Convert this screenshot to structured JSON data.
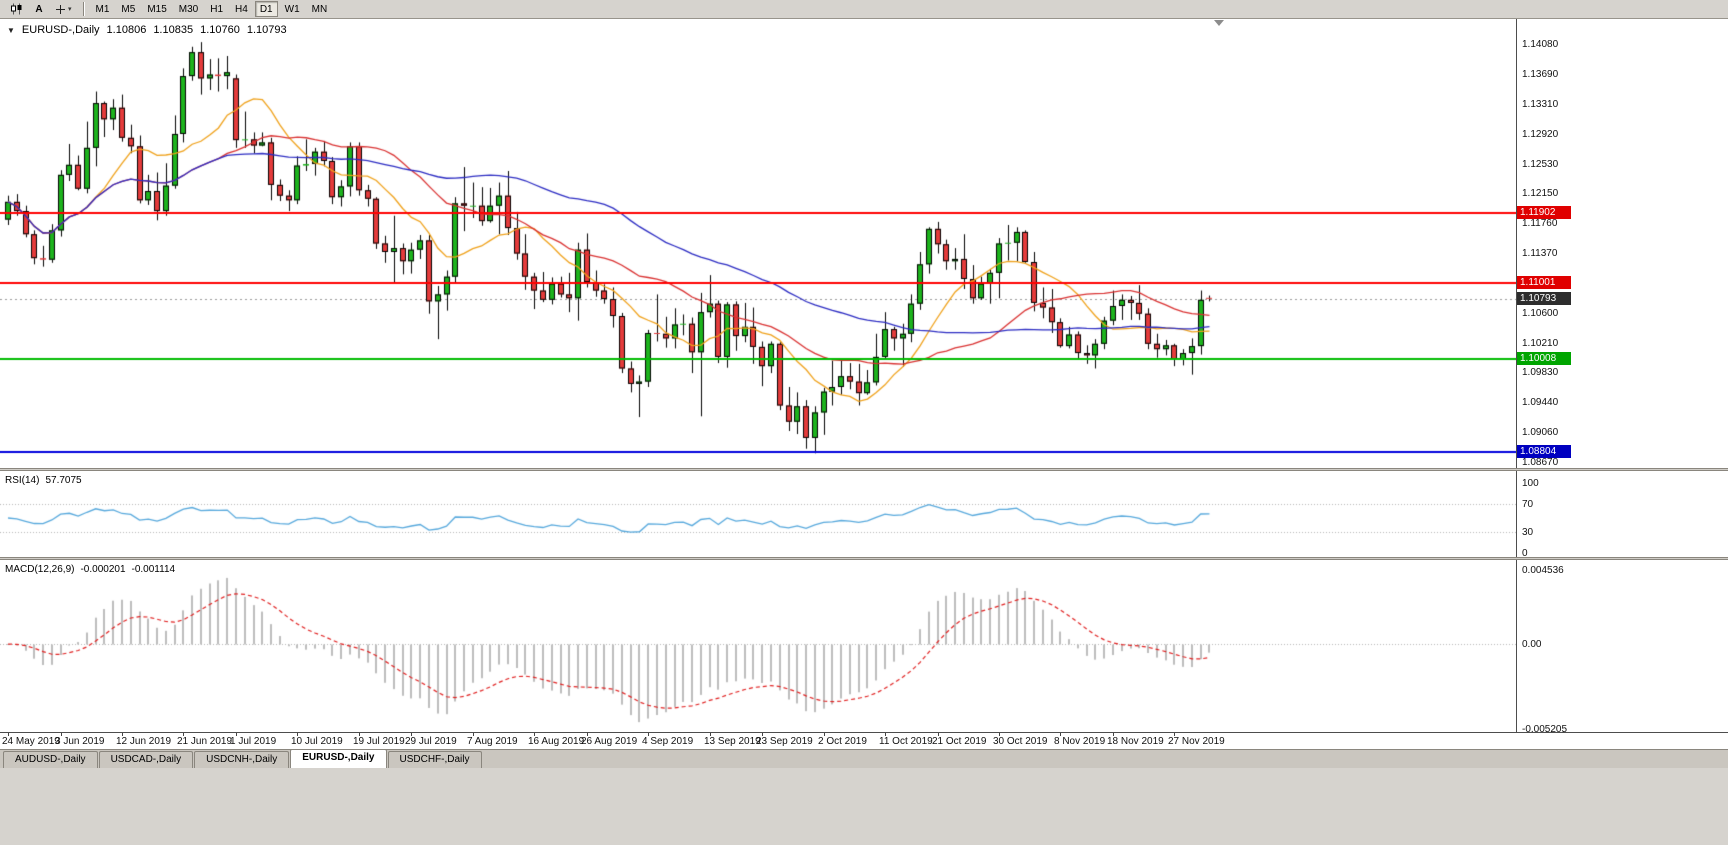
{
  "toolbar": {
    "icons": [
      {
        "name": "charts-icon",
        "type": "candles"
      },
      {
        "name": "text-tool-icon",
        "type": "text",
        "glyph": "A"
      },
      {
        "name": "crosshair-icon",
        "type": "crosshair",
        "caret": true
      }
    ],
    "timeframes": [
      "M1",
      "M5",
      "M15",
      "M30",
      "H1",
      "H4",
      "D1",
      "W1",
      "MN"
    ],
    "active_timeframe": "D1"
  },
  "chart_data": {
    "type": "candlestick",
    "symbol_title": "EURUSD-,Daily",
    "ohlc_display": {
      "open": "1.10806",
      "high": "1.10835",
      "low": "1.10760",
      "close": "1.10793"
    },
    "price_axis_labels": [
      "1.14080",
      "1.13690",
      "1.13310",
      "1.12920",
      "1.12530",
      "1.12150",
      "1.11760",
      "1.11370",
      "1.10600",
      "1.10210",
      "1.09830",
      "1.09440",
      "1.09060",
      "1.08670"
    ],
    "hlines": [
      {
        "price": 1.11902,
        "label": "1.11902",
        "color": "#ff0000",
        "tag_bg": "#e00000"
      },
      {
        "price": 1.11001,
        "label": "1.11001",
        "color": "#ff0000",
        "tag_bg": "#e00000"
      },
      {
        "price": 1.10008,
        "label": "1.10008",
        "color": "#00bb00",
        "tag_bg": "#00a500"
      },
      {
        "price": 1.08804,
        "label": "1.08804",
        "color": "#0000dd",
        "tag_bg": "#0000c0"
      }
    ],
    "current_price": {
      "value": 1.10793,
      "label": "1.10793",
      "tag_bg": "#2d2d2d"
    },
    "scale": {
      "price_top": 1.1442,
      "price_bottom": 1.086
    },
    "colors": {
      "up": "#1db31d",
      "down": "#e43b3b",
      "outline": "#000000",
      "background": "#ffffff",
      "current_line": "#999999"
    },
    "ma": [
      {
        "period": 10,
        "color": "#efa11a"
      },
      {
        "period": 25,
        "color": "#d93030"
      },
      {
        "period": 50,
        "color": "#2b2bc2"
      }
    ],
    "candles": [
      [
        1.1182,
        1.1213,
        1.1175,
        1.1205
      ],
      [
        1.1205,
        1.1215,
        1.1187,
        1.1193
      ],
      [
        1.1193,
        1.12,
        1.1159,
        1.1163
      ],
      [
        1.1163,
        1.1168,
        1.1124,
        1.1132
      ],
      [
        1.1132,
        1.1148,
        1.1121,
        1.113
      ],
      [
        1.113,
        1.1176,
        1.1126,
        1.1168
      ],
      [
        1.1168,
        1.1246,
        1.116,
        1.124
      ],
      [
        1.124,
        1.128,
        1.1232,
        1.1253
      ],
      [
        1.1253,
        1.1265,
        1.122,
        1.1222
      ],
      [
        1.1222,
        1.1309,
        1.1216,
        1.1275
      ],
      [
        1.1275,
        1.1348,
        1.1251,
        1.1333
      ],
      [
        1.1333,
        1.1335,
        1.1289,
        1.1312
      ],
      [
        1.1312,
        1.1338,
        1.1298,
        1.1327
      ],
      [
        1.1327,
        1.1344,
        1.1283,
        1.1288
      ],
      [
        1.1288,
        1.1305,
        1.1268,
        1.1277
      ],
      [
        1.1277,
        1.1291,
        1.1203,
        1.1207
      ],
      [
        1.1207,
        1.124,
        1.1201,
        1.1219
      ],
      [
        1.1219,
        1.1243,
        1.1181,
        1.1193
      ],
      [
        1.1193,
        1.1255,
        1.1187,
        1.1226
      ],
      [
        1.1226,
        1.1317,
        1.1222,
        1.1293
      ],
      [
        1.1293,
        1.1378,
        1.1282,
        1.1368
      ],
      [
        1.1368,
        1.1406,
        1.1362,
        1.1399
      ],
      [
        1.1399,
        1.1412,
        1.1344,
        1.1365
      ],
      [
        1.1365,
        1.139,
        1.135,
        1.137
      ],
      [
        1.137,
        1.1391,
        1.1348,
        1.1368
      ],
      [
        1.1368,
        1.1394,
        1.1351,
        1.1373
      ],
      [
        1.1365,
        1.137,
        1.1275,
        1.1285
      ],
      [
        1.1285,
        1.1322,
        1.1275,
        1.1286
      ],
      [
        1.1286,
        1.1295,
        1.1268,
        1.1278
      ],
      [
        1.1278,
        1.1295,
        1.1277,
        1.1282
      ],
      [
        1.1282,
        1.1288,
        1.1207,
        1.1227
      ],
      [
        1.1227,
        1.1234,
        1.1206,
        1.1213
      ],
      [
        1.1213,
        1.122,
        1.1193,
        1.1207
      ],
      [
        1.1207,
        1.1264,
        1.1202,
        1.1252
      ],
      [
        1.1252,
        1.1286,
        1.1245,
        1.1254
      ],
      [
        1.1254,
        1.1275,
        1.1239,
        1.127
      ],
      [
        1.127,
        1.1284,
        1.1251,
        1.1258
      ],
      [
        1.1258,
        1.1263,
        1.1202,
        1.1211
      ],
      [
        1.1211,
        1.1233,
        1.1199,
        1.1225
      ],
      [
        1.1225,
        1.1282,
        1.1212,
        1.1277
      ],
      [
        1.1277,
        1.1282,
        1.1213,
        1.122
      ],
      [
        1.122,
        1.1227,
        1.1199,
        1.1209
      ],
      [
        1.1209,
        1.1211,
        1.1144,
        1.1151
      ],
      [
        1.1151,
        1.1161,
        1.1126,
        1.114
      ],
      [
        1.114,
        1.1187,
        1.1101,
        1.1145
      ],
      [
        1.1145,
        1.1151,
        1.1111,
        1.1128
      ],
      [
        1.1128,
        1.1152,
        1.1112,
        1.1143
      ],
      [
        1.1143,
        1.1162,
        1.1131,
        1.1155
      ],
      [
        1.1155,
        1.1162,
        1.106,
        1.1076
      ],
      [
        1.1076,
        1.1096,
        1.1027,
        1.1085
      ],
      [
        1.1085,
        1.1116,
        1.1064,
        1.1108
      ],
      [
        1.1108,
        1.1211,
        1.1101,
        1.1203
      ],
      [
        1.1203,
        1.125,
        1.1167,
        1.12
      ],
      [
        1.12,
        1.123,
        1.1184,
        1.12
      ],
      [
        1.12,
        1.1224,
        1.1174,
        1.118
      ],
      [
        1.118,
        1.1223,
        1.1178,
        1.12
      ],
      [
        1.12,
        1.123,
        1.1163,
        1.1213
      ],
      [
        1.1213,
        1.1245,
        1.1162,
        1.1171
      ],
      [
        1.1171,
        1.1192,
        1.113,
        1.1138
      ],
      [
        1.1138,
        1.1163,
        1.1091,
        1.1108
      ],
      [
        1.1108,
        1.1113,
        1.1066,
        1.109
      ],
      [
        1.109,
        1.1114,
        1.1075,
        1.1078
      ],
      [
        1.1078,
        1.1107,
        1.1072,
        1.1099
      ],
      [
        1.1099,
        1.1108,
        1.1081,
        1.1085
      ],
      [
        1.1085,
        1.1113,
        1.1062,
        1.108
      ],
      [
        1.108,
        1.1152,
        1.1051,
        1.1143
      ],
      [
        1.1143,
        1.1164,
        1.1094,
        1.1101
      ],
      [
        1.1101,
        1.1116,
        1.1082,
        1.109
      ],
      [
        1.109,
        1.1098,
        1.1073,
        1.1079
      ],
      [
        1.1079,
        1.1094,
        1.1042,
        1.1057
      ],
      [
        1.1057,
        1.1061,
        1.0983,
        1.0989
      ],
      [
        1.0989,
        1.0998,
        1.0958,
        1.0969
      ],
      [
        1.0969,
        1.098,
        1.0926,
        1.0972
      ],
      [
        1.0972,
        1.1039,
        1.0965,
        1.1035
      ],
      [
        1.1035,
        1.1085,
        1.1024,
        1.1034
      ],
      [
        1.1034,
        1.1056,
        1.1016,
        1.1028
      ],
      [
        1.1028,
        1.1067,
        1.1015,
        1.1046
      ],
      [
        1.1046,
        1.1059,
        1.1032,
        1.1047
      ],
      [
        1.1047,
        1.1055,
        1.0983,
        1.101
      ],
      [
        1.101,
        1.1087,
        1.0927,
        1.1062
      ],
      [
        1.1062,
        1.111,
        1.1055,
        1.1073
      ],
      [
        1.1073,
        1.1077,
        1.0996,
        1.1004
      ],
      [
        1.1004,
        1.1075,
        1.099,
        1.1072
      ],
      [
        1.1072,
        1.1076,
        1.1012,
        1.1031
      ],
      [
        1.1031,
        1.1074,
        1.1023,
        1.1043
      ],
      [
        1.1043,
        1.1068,
        1.0995,
        1.1017
      ],
      [
        1.1017,
        1.1024,
        1.0966,
        1.0992
      ],
      [
        1.0992,
        1.1024,
        1.0983,
        1.1021
      ],
      [
        1.1021,
        1.1023,
        1.0935,
        1.0941
      ],
      [
        1.0941,
        1.0965,
        1.0908,
        1.092
      ],
      [
        1.092,
        1.0958,
        1.0904,
        1.094
      ],
      [
        1.094,
        1.0948,
        1.0885,
        1.0899
      ],
      [
        1.0899,
        1.094,
        1.0879,
        1.0932
      ],
      [
        1.0932,
        1.0964,
        1.0903,
        1.0959
      ],
      [
        1.0959,
        1.0999,
        1.0941,
        1.0965
      ],
      [
        1.0965,
        1.0999,
        1.0955,
        1.0979
      ],
      [
        1.0979,
        1.0996,
        1.0962,
        1.0972
      ],
      [
        1.0972,
        1.0995,
        1.0941,
        1.0957
      ],
      [
        1.0957,
        1.0987,
        1.0955,
        1.0971
      ],
      [
        1.0971,
        1.1034,
        1.0967,
        1.1004
      ],
      [
        1.1004,
        1.1062,
        1.1002,
        1.104
      ],
      [
        1.104,
        1.1043,
        1.1012,
        1.1028
      ],
      [
        1.1028,
        1.1047,
        1.0991,
        1.1034
      ],
      [
        1.1034,
        1.1085,
        1.1023,
        1.1073
      ],
      [
        1.1073,
        1.114,
        1.1065,
        1.1124
      ],
      [
        1.1124,
        1.1172,
        1.1112,
        1.117
      ],
      [
        1.117,
        1.1179,
        1.1138,
        1.115
      ],
      [
        1.115,
        1.1156,
        1.1117,
        1.1128
      ],
      [
        1.1128,
        1.1145,
        1.1117,
        1.1131
      ],
      [
        1.1131,
        1.1163,
        1.1092,
        1.1105
      ],
      [
        1.1105,
        1.1123,
        1.1073,
        1.108
      ],
      [
        1.108,
        1.1108,
        1.1078,
        1.1099
      ],
      [
        1.1099,
        1.1118,
        1.1073,
        1.1113
      ],
      [
        1.1113,
        1.1158,
        1.108,
        1.1151
      ],
      [
        1.1151,
        1.1175,
        1.1129,
        1.1152
      ],
      [
        1.1152,
        1.1172,
        1.1128,
        1.1166
      ],
      [
        1.1166,
        1.1168,
        1.1126,
        1.1127
      ],
      [
        1.1127,
        1.114,
        1.1063,
        1.1074
      ],
      [
        1.1074,
        1.1094,
        1.1054,
        1.1068
      ],
      [
        1.1068,
        1.1092,
        1.1035,
        1.1049
      ],
      [
        1.1049,
        1.1054,
        1.1016,
        1.1018
      ],
      [
        1.1018,
        1.1043,
        1.1015,
        1.1033
      ],
      [
        1.1033,
        1.1037,
        1.1002,
        1.1009
      ],
      [
        1.1009,
        1.1019,
        1.0995,
        1.1006
      ],
      [
        1.1006,
        1.1027,
        1.0989,
        1.1021
      ],
      [
        1.1021,
        1.1056,
        1.1014,
        1.1051
      ],
      [
        1.1051,
        1.109,
        1.1045,
        1.107
      ],
      [
        1.107,
        1.1085,
        1.1052,
        1.1078
      ],
      [
        1.1078,
        1.1083,
        1.1052,
        1.1074
      ],
      [
        1.1074,
        1.1097,
        1.1052,
        1.106
      ],
      [
        1.106,
        1.1067,
        1.1014,
        1.1021
      ],
      [
        1.1021,
        1.1034,
        1.1003,
        1.1014
      ],
      [
        1.1014,
        1.1026,
        1.1006,
        1.1019
      ],
      [
        1.1019,
        1.1021,
        1.0992,
        1.1001
      ],
      [
        1.1001,
        1.1014,
        1.0993,
        1.1009
      ],
      [
        1.1009,
        1.1028,
        1.0981,
        1.1018
      ],
      [
        1.1018,
        1.109,
        1.1007,
        1.1078
      ],
      [
        1.10806,
        1.10835,
        1.1076,
        1.10793
      ]
    ],
    "x_axis": {
      "labels": [
        "24 May 2019",
        "3 Jun 2019",
        "12 Jun 2019",
        "21 Jun 2019",
        "1 Jul 2019",
        "10 Jul 2019",
        "19 Jul 2019",
        "29 Jul 2019",
        "7 Aug 2019",
        "16 Aug 2019",
        "26 Aug 2019",
        "4 Sep 2019",
        "13 Sep 2019",
        "23 Sep 2019",
        "2 Oct 2019",
        "11 Oct 2019",
        "21 Oct 2019",
        "30 Oct 2019",
        "8 Nov 2019",
        "18 Nov 2019",
        "27 Nov 2019"
      ],
      "tick_indices": [
        0,
        6,
        13,
        20,
        26,
        33,
        40,
        46,
        53,
        60,
        66,
        73,
        80,
        86,
        93,
        100,
        106,
        113,
        120,
        126,
        133
      ]
    }
  },
  "rsi": {
    "label": "RSI(14)",
    "value": "57.7075",
    "period": 14,
    "color": "#56a8dc",
    "levels": [
      70,
      30
    ],
    "axis_labels": [
      "100",
      "70",
      "30",
      "0"
    ]
  },
  "macd": {
    "label": "MACD(12,26,9)",
    "main_value": "-0.000201",
    "signal_value": "-0.001114",
    "fast": 12,
    "slow": 26,
    "signal": 9,
    "hist_color": "#bdbdbd",
    "signal_color": "#e02020",
    "axis_labels": [
      {
        "text": "0.004536",
        "value": 0.004536
      },
      {
        "text": "0.00",
        "value": 0
      },
      {
        "text": "-0.005205",
        "value": -0.005205
      }
    ]
  },
  "tabs": [
    {
      "label": "AUDUSD-,Daily",
      "active": false
    },
    {
      "label": "USDCAD-,Daily",
      "active": false
    },
    {
      "label": "USDCNH-,Daily",
      "active": false
    },
    {
      "label": "EURUSD-,Daily",
      "active": true
    },
    {
      "label": "USDCHF-,Daily",
      "active": false
    }
  ]
}
